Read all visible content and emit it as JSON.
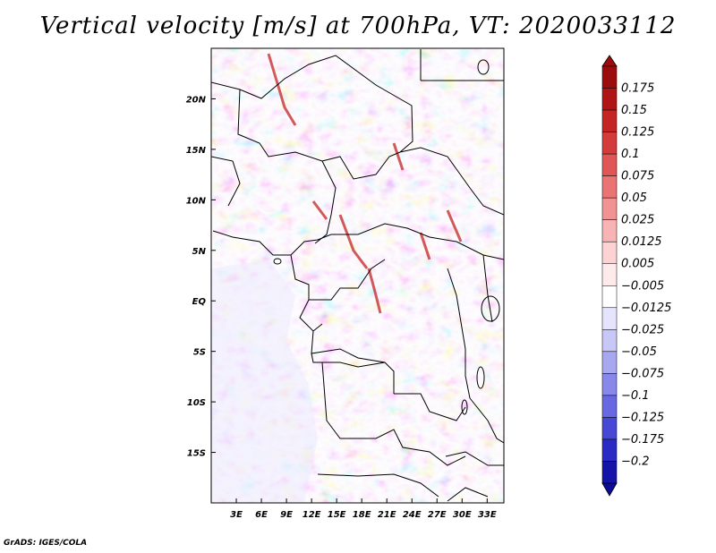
{
  "title": "Vertical velocity [m/s] at 700hPa, VT: 2020033112",
  "footer": "GrADS: IGES/COLA",
  "map": {
    "variable": "Vertical velocity",
    "units": "m/s",
    "level": "700hPa",
    "valid_time": "2020033112",
    "lon_range": [
      0,
      35
    ],
    "lat_range": [
      -20,
      25
    ],
    "lon_ticks": [
      {
        "value": 3,
        "label": "3E"
      },
      {
        "value": 6,
        "label": "6E"
      },
      {
        "value": 9,
        "label": "9E"
      },
      {
        "value": 12,
        "label": "12E"
      },
      {
        "value": 15,
        "label": "15E"
      },
      {
        "value": 18,
        "label": "18E"
      },
      {
        "value": 21,
        "label": "21E"
      },
      {
        "value": 24,
        "label": "24E"
      },
      {
        "value": 27,
        "label": "27E"
      },
      {
        "value": 30,
        "label": "30E"
      },
      {
        "value": 33,
        "label": "33E"
      }
    ],
    "lat_ticks": [
      {
        "value": 20,
        "label": "20N"
      },
      {
        "value": 15,
        "label": "15N"
      },
      {
        "value": 10,
        "label": "10N"
      },
      {
        "value": 5,
        "label": "5N"
      },
      {
        "value": 0,
        "label": "EQ"
      },
      {
        "value": -5,
        "label": "5S"
      },
      {
        "value": -10,
        "label": "10S"
      },
      {
        "value": -15,
        "label": "15S"
      }
    ]
  },
  "colorbar": {
    "entries": [
      {
        "label": "0.175",
        "color": "#b01414"
      },
      {
        "label": "0.15",
        "color": "#c42424"
      },
      {
        "label": "0.125",
        "color": "#d43b3b"
      },
      {
        "label": "0.1",
        "color": "#e05656"
      },
      {
        "label": "0.075",
        "color": "#ea7474"
      },
      {
        "label": "0.05",
        "color": "#f29393"
      },
      {
        "label": "0.025",
        "color": "#f8b4b4"
      },
      {
        "label": "0.0125",
        "color": "#fcd2d2"
      },
      {
        "label": "0.005",
        "color": "#feeaea"
      },
      {
        "label": "−0.005",
        "color": "#ffffff"
      },
      {
        "label": "−0.0125",
        "color": "#e4e4fc"
      },
      {
        "label": "−0.025",
        "color": "#c8c8f8"
      },
      {
        "label": "−0.05",
        "color": "#a8a8f0"
      },
      {
        "label": "−0.075",
        "color": "#8888ea"
      },
      {
        "label": "−0.1",
        "color": "#6868e2"
      },
      {
        "label": "−0.125",
        "color": "#4848d6"
      },
      {
        "label": "−0.175",
        "color": "#2a2ac4"
      },
      {
        "label": "−0.2",
        "color": "#1414a8"
      }
    ],
    "top_arrow_color": "#9c0c0c",
    "bottom_arrow_color": "#0c0c96",
    "white_band_color": "#ffffff"
  }
}
